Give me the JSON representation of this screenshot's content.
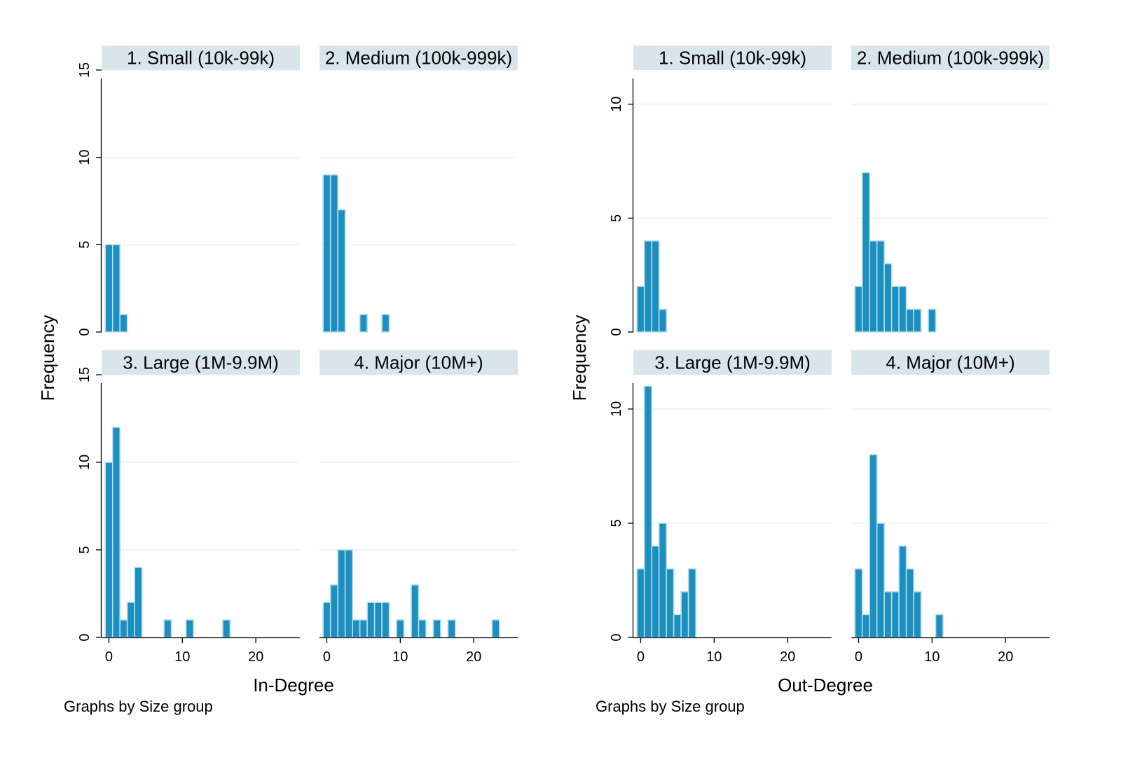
{
  "chart_data": [
    {
      "type": "bar",
      "xlabel": "In-Degree",
      "ylabel": "Frequency",
      "note": "Graphs by Size group",
      "xlim": [
        -1,
        26
      ],
      "ylim": [
        0,
        15
      ],
      "xticks": [
        0,
        10,
        20
      ],
      "yticks": [
        0,
        5,
        10,
        15
      ],
      "grid": true,
      "bar_color": "#1a8fc0",
      "bar_outline": "#b9dcea",
      "strip_color": "#d8e5eb",
      "panels": [
        {
          "title": "1. Small (10k-99k)",
          "bars": [
            {
              "x": 0,
              "count": 5
            },
            {
              "x": 1,
              "count": 5
            },
            {
              "x": 2,
              "count": 1
            }
          ]
        },
        {
          "title": "2. Medium (100k-999k)",
          "bars": [
            {
              "x": 0,
              "count": 9
            },
            {
              "x": 1,
              "count": 9
            },
            {
              "x": 2,
              "count": 7
            },
            {
              "x": 5,
              "count": 1
            },
            {
              "x": 8,
              "count": 1
            }
          ]
        },
        {
          "title": "3. Large (1M-9.9M)",
          "bars": [
            {
              "x": 0,
              "count": 10
            },
            {
              "x": 1,
              "count": 12
            },
            {
              "x": 2,
              "count": 1
            },
            {
              "x": 3,
              "count": 2
            },
            {
              "x": 4,
              "count": 4
            },
            {
              "x": 8,
              "count": 1
            },
            {
              "x": 11,
              "count": 1
            },
            {
              "x": 16,
              "count": 1
            }
          ]
        },
        {
          "title": "4. Major (10M+)",
          "bars": [
            {
              "x": 0,
              "count": 2
            },
            {
              "x": 1,
              "count": 3
            },
            {
              "x": 2,
              "count": 5
            },
            {
              "x": 3,
              "count": 5
            },
            {
              "x": 4,
              "count": 1
            },
            {
              "x": 5,
              "count": 1
            },
            {
              "x": 6,
              "count": 2
            },
            {
              "x": 7,
              "count": 2
            },
            {
              "x": 8,
              "count": 2
            },
            {
              "x": 10,
              "count": 1
            },
            {
              "x": 12,
              "count": 3
            },
            {
              "x": 13,
              "count": 1
            },
            {
              "x": 15,
              "count": 1
            },
            {
              "x": 17,
              "count": 1
            },
            {
              "x": 23,
              "count": 1
            }
          ]
        }
      ]
    },
    {
      "type": "bar",
      "xlabel": "Out-Degree",
      "ylabel": "Frequency",
      "note": "Graphs by Size group",
      "xlim": [
        -1,
        26
      ],
      "ylim": [
        0,
        11.5
      ],
      "xticks": [
        0,
        10,
        20
      ],
      "yticks": [
        0,
        5,
        10
      ],
      "grid": true,
      "bar_color": "#1a8fc0",
      "bar_outline": "#b9dcea",
      "strip_color": "#d8e5eb",
      "panels": [
        {
          "title": "1. Small (10k-99k)",
          "bars": [
            {
              "x": 0,
              "count": 2
            },
            {
              "x": 1,
              "count": 4
            },
            {
              "x": 2,
              "count": 4
            },
            {
              "x": 3,
              "count": 1
            }
          ]
        },
        {
          "title": "2. Medium (100k-999k)",
          "bars": [
            {
              "x": 0,
              "count": 2
            },
            {
              "x": 1,
              "count": 7
            },
            {
              "x": 2,
              "count": 4
            },
            {
              "x": 3,
              "count": 4
            },
            {
              "x": 4,
              "count": 3
            },
            {
              "x": 5,
              "count": 2
            },
            {
              "x": 6,
              "count": 2
            },
            {
              "x": 7,
              "count": 1
            },
            {
              "x": 8,
              "count": 1
            },
            {
              "x": 10,
              "count": 1
            }
          ]
        },
        {
          "title": "3. Large (1M-9.9M)",
          "bars": [
            {
              "x": 0,
              "count": 3
            },
            {
              "x": 1,
              "count": 11
            },
            {
              "x": 2,
              "count": 4
            },
            {
              "x": 3,
              "count": 5
            },
            {
              "x": 4,
              "count": 3
            },
            {
              "x": 5,
              "count": 1
            },
            {
              "x": 6,
              "count": 2
            },
            {
              "x": 7,
              "count": 3
            }
          ]
        },
        {
          "title": "4. Major (10M+)",
          "bars": [
            {
              "x": 0,
              "count": 3
            },
            {
              "x": 1,
              "count": 1
            },
            {
              "x": 2,
              "count": 8
            },
            {
              "x": 3,
              "count": 5
            },
            {
              "x": 4,
              "count": 2
            },
            {
              "x": 5,
              "count": 2
            },
            {
              "x": 6,
              "count": 4
            },
            {
              "x": 7,
              "count": 3
            },
            {
              "x": 8,
              "count": 2
            },
            {
              "x": 11,
              "count": 1
            }
          ]
        }
      ]
    }
  ]
}
